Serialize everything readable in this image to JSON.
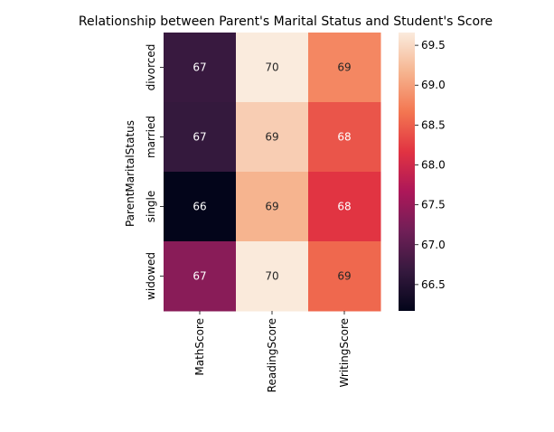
{
  "chart_data": {
    "type": "heatmap",
    "title": "Relationship between Parent's Marital Status and Student's Score",
    "xlabel": "",
    "ylabel": "ParentMaritalStatus",
    "x_categories": [
      "MathScore",
      "ReadingScore",
      "WritingScore"
    ],
    "y_categories": [
      "divorced",
      "married",
      "single",
      "widowed"
    ],
    "values": [
      [
        66.69,
        69.66,
        68.8
      ],
      [
        66.66,
        69.39,
        68.42
      ],
      [
        66.17,
        69.16,
        68.17
      ],
      [
        67.37,
        69.65,
        68.56
      ]
    ],
    "annotations": [
      [
        "67",
        "70",
        "69"
      ],
      [
        "67",
        "69",
        "68"
      ],
      [
        "66",
        "69",
        "68"
      ],
      [
        "67",
        "70",
        "69"
      ]
    ],
    "colorbar": {
      "range": [
        66.17,
        69.66
      ],
      "ticks": [
        "66.5",
        "67.0",
        "67.5",
        "68.0",
        "68.5",
        "69.0",
        "69.5"
      ],
      "tick_values": [
        66.5,
        67.0,
        67.5,
        68.0,
        68.5,
        69.0,
        69.5
      ]
    },
    "colormap": "rocket",
    "colormap_stops": [
      "#03051a",
      "#35193e",
      "#701f57",
      "#ad1759",
      "#e13342",
      "#f37651",
      "#f6b48f",
      "#faebdd"
    ]
  }
}
